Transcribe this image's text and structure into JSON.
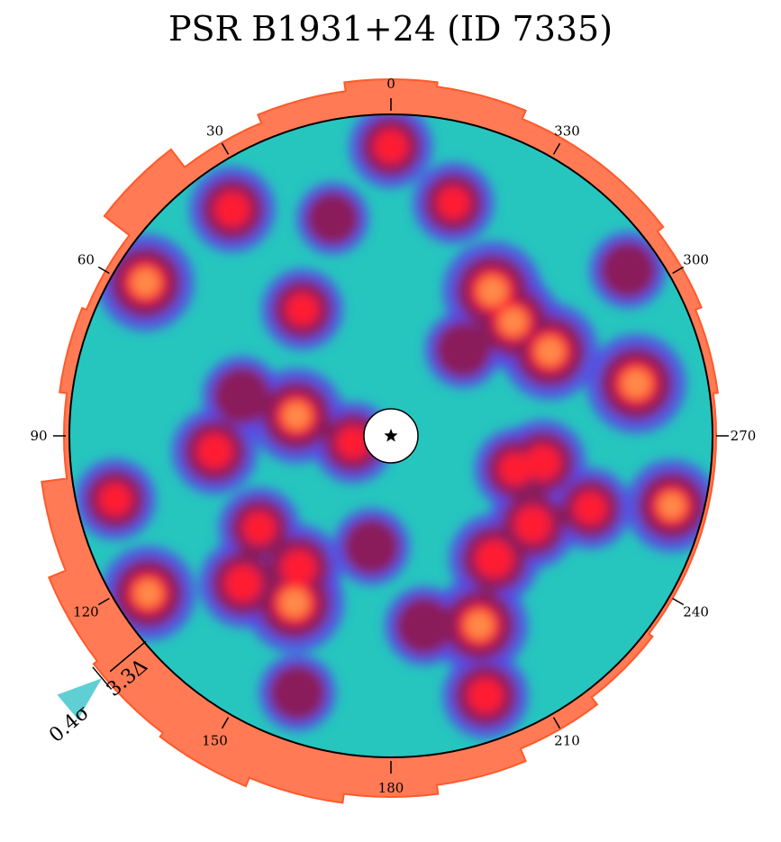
{
  "chart_data": {
    "type": "heatmap",
    "title": "PSR B1931+24 (ID 7335)",
    "angular_ticks": [
      0,
      30,
      60,
      90,
      120,
      150,
      180,
      210,
      240,
      270,
      300,
      330
    ],
    "angular_direction": "counterclockwise",
    "center_marker": "star-icon",
    "colors": {
      "background": "#26c6bf",
      "mid": "#5b45e6",
      "high": "#8a1f5c",
      "hot": "#ff1a33",
      "peak": "#ff8a4a",
      "histogram": "#ff7a55",
      "indicator": "#5fcfd3"
    },
    "radial_histogram": {
      "angle_deg": [
        0,
        15,
        30,
        45,
        60,
        75,
        90,
        105,
        120,
        135,
        150,
        165,
        180,
        195,
        210,
        225,
        240,
        255,
        270,
        285,
        300,
        315,
        330,
        345
      ],
      "excess": [
        0.35,
        0.25,
        0.15,
        0.4,
        0.05,
        0.1,
        0.02,
        0.3,
        0.5,
        0.55,
        0.6,
        0.5,
        0.4,
        0.3,
        0.15,
        0.05,
        0.0,
        0.0,
        0.0,
        0.05,
        0.12,
        0.2,
        0.2,
        0.3
      ]
    },
    "peak_indicator": {
      "angle_deg": 130,
      "significance_label": "3.3Δ",
      "width_label": "0.4σ"
    },
    "hotspots": [
      {
        "angle_deg": 325,
        "r": 0.55,
        "intensity": 1.0
      },
      {
        "angle_deg": 313,
        "r": 0.52,
        "intensity": 0.9
      },
      {
        "angle_deg": 298,
        "r": 0.56,
        "intensity": 0.95
      },
      {
        "angle_deg": 282,
        "r": 0.78,
        "intensity": 1.0
      },
      {
        "angle_deg": 0,
        "r": 0.9,
        "intensity": 0.65
      },
      {
        "angle_deg": 345,
        "r": 0.75,
        "intensity": 0.6
      },
      {
        "angle_deg": 35,
        "r": 0.86,
        "intensity": 0.7
      },
      {
        "angle_deg": 58,
        "r": 0.9,
        "intensity": 0.95
      },
      {
        "angle_deg": 75,
        "r": 0.48,
        "intensity": 0.55
      },
      {
        "angle_deg": 35,
        "r": 0.48,
        "intensity": 0.6
      },
      {
        "angle_deg": 78,
        "r": 0.3,
        "intensity": 0.9
      },
      {
        "angle_deg": 95,
        "r": 0.55,
        "intensity": 0.7
      },
      {
        "angle_deg": 103,
        "r": 0.88,
        "intensity": 0.6
      },
      {
        "angle_deg": 123,
        "r": 0.9,
        "intensity": 0.9
      },
      {
        "angle_deg": 135,
        "r": 0.65,
        "intensity": 0.75
      },
      {
        "angle_deg": 150,
        "r": 0.6,
        "intensity": 1.0
      },
      {
        "angle_deg": 145,
        "r": 0.5,
        "intensity": 0.7
      },
      {
        "angle_deg": 125,
        "r": 0.5,
        "intensity": 0.6
      },
      {
        "angle_deg": 160,
        "r": 0.85,
        "intensity": 0.5
      },
      {
        "angle_deg": 200,
        "r": 0.86,
        "intensity": 0.7
      },
      {
        "angle_deg": 205,
        "r": 0.65,
        "intensity": 0.95
      },
      {
        "angle_deg": 220,
        "r": 0.5,
        "intensity": 0.8
      },
      {
        "angle_deg": 238,
        "r": 0.52,
        "intensity": 0.75
      },
      {
        "angle_deg": 250,
        "r": 0.66,
        "intensity": 0.6
      },
      {
        "angle_deg": 256,
        "r": 0.9,
        "intensity": 0.85
      },
      {
        "angle_deg": 255,
        "r": 0.4,
        "intensity": 0.6
      },
      {
        "angle_deg": 260,
        "r": 0.48,
        "intensity": 0.7
      },
      {
        "angle_deg": 170,
        "r": 0.35,
        "intensity": 0.5
      },
      {
        "angle_deg": 100,
        "r": 0.12,
        "intensity": 0.6
      },
      {
        "angle_deg": 305,
        "r": 0.9,
        "intensity": 0.5
      },
      {
        "angle_deg": 15,
        "r": 0.7,
        "intensity": 0.4
      },
      {
        "angle_deg": 190,
        "r": 0.6,
        "intensity": 0.55
      },
      {
        "angle_deg": 320,
        "r": 0.35,
        "intensity": 0.5
      }
    ]
  }
}
